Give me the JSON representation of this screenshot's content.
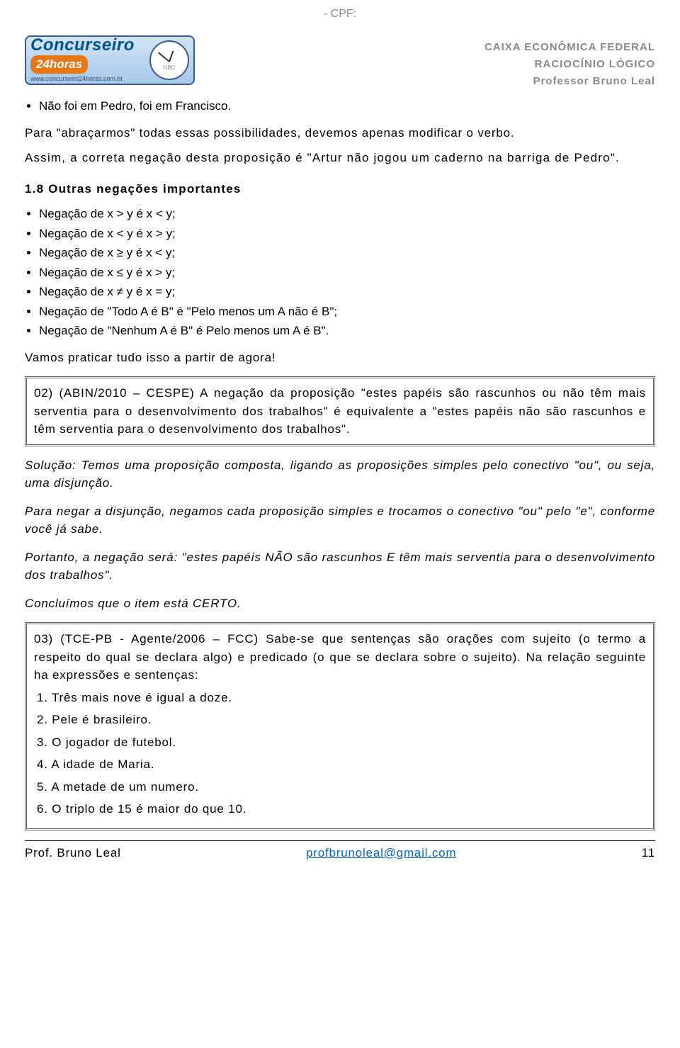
{
  "cpf_label": "- CPF:",
  "logo": {
    "line1": "Concurseiro",
    "line2": "24horas",
    "url": "www.concurseiro24horas.com.br",
    "clock_label": "HBC"
  },
  "header_right": {
    "line1": "CAIXA ECONÔMICA FEDERAL",
    "line2": "RACIOCÍNIO LÓGICO",
    "line3": "Professor Bruno Leal"
  },
  "intro_bullet": "Não foi em Pedro, foi em Francisco.",
  "para1": "Para \"abraçarmos\" todas essas possibilidades, devemos apenas modificar o verbo.",
  "para2": "Assim, a correta negação desta proposição é \"Artur não jogou um caderno na barriga de Pedro\".",
  "section_head": "1.8   Outras negações importantes",
  "negations": [
    "Negação de x > y é x < y;",
    "Negação de x < y é x > y;",
    "Negação de x ≥ y é x < y;",
    "Negação de x ≤ y é x > y;",
    "Negação de x ≠ y é x = y;",
    "Negação de \"Todo A é B\" é \"Pelo menos um A não é B\";",
    "Negação de \"Nenhum A é B\" é Pelo menos um A é B\"."
  ],
  "practice": "Vamos praticar tudo isso a partir de agora!",
  "q02": "02) (ABIN/2010 – CESPE) A negação da proposição \"estes papéis são rascunhos ou não têm mais serventia para o desenvolvimento dos trabalhos\" é equivalente a \"estes papéis não são rascunhos e têm serventia para o desenvolvimento dos trabalhos\".",
  "sol1": "Solução:   Temos uma proposição composta, ligando as proposições simples pelo conectivo \"ou\", ou seja, uma disjunção.",
  "sol2": "Para negar a disjunção, negamos cada proposição simples e trocamos o conectivo \"ou\" pelo \"e\", conforme você já sabe.",
  "sol3": "Portanto, a negação será:  \"estes papéis NÃO são rascunhos E têm mais serventia para o desenvolvimento dos trabalhos\".",
  "sol4": "Concluímos que o item está CERTO.",
  "q03_intro": "03) (TCE-PB - Agente/2006 – FCC) Sabe-se que sentenças são orações com sujeito (o termo a respeito do qual se declara algo) e predicado (o que se declara sobre o sujeito). Na relação seguinte ha expressões e sentenças:",
  "q03_items": [
    "1. Três mais nove é igual a doze.",
    "2. Pele é brasileiro.",
    "3. O jogador de futebol.",
    "4. A idade de Maria.",
    "5. A metade de um numero.",
    "6. O triplo de 15 é maior do que 10."
  ],
  "footer": {
    "left": "Prof. Bruno Leal",
    "email": "profbrunoleal@gmail.com",
    "page": "11"
  }
}
